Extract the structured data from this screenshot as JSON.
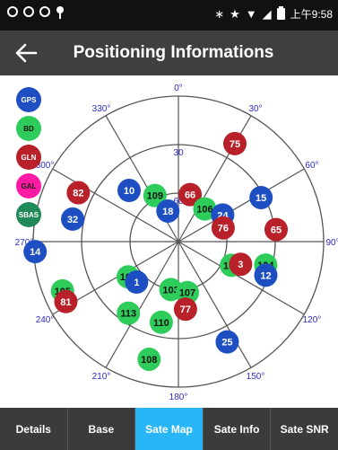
{
  "status_bar": {
    "time": "上午9:58"
  },
  "header": {
    "title": "Positioning Informations"
  },
  "legend": [
    {
      "label": "GPS",
      "color": "#1e4fc2"
    },
    {
      "label": "BD",
      "color": "#2ecc5a"
    },
    {
      "label": "GLN",
      "color": "#b8202a"
    },
    {
      "label": "GAL",
      "color": "#ff1aa3"
    },
    {
      "label": "SBAS",
      "color": "#1f8a57"
    }
  ],
  "skyplot": {
    "azimuth_labels": [
      {
        "az": 0,
        "label": "0°"
      },
      {
        "az": 30,
        "label": "30°"
      },
      {
        "az": 60,
        "label": "60°"
      },
      {
        "az": 90,
        "label": "90°"
      },
      {
        "az": 120,
        "label": "120°"
      },
      {
        "az": 150,
        "label": "150°"
      },
      {
        "az": 180,
        "label": "180°"
      },
      {
        "az": 210,
        "label": "210°"
      },
      {
        "az": 240,
        "label": "240°"
      },
      {
        "az": 270,
        "label": "270°"
      },
      {
        "az": 300,
        "label": "300°"
      },
      {
        "az": 330,
        "label": "330°"
      }
    ],
    "elevation_labels": [
      {
        "elevation": 30,
        "label": "30"
      },
      {
        "elevation": 60,
        "label": "60"
      }
    ],
    "satellites": [
      {
        "id": "75",
        "system": "GLN",
        "az": 30,
        "elevation": 20
      },
      {
        "id": "15",
        "system": "GPS",
        "az": 62,
        "elevation": 32
      },
      {
        "id": "10",
        "system": "GPS",
        "az": 316,
        "elevation": 46
      },
      {
        "id": "66",
        "system": "GLN",
        "az": 14,
        "elevation": 60
      },
      {
        "id": "109",
        "system": "BD",
        "az": 333,
        "elevation": 58
      },
      {
        "id": "106",
        "system": "BD",
        "az": 39,
        "elevation": 64
      },
      {
        "id": "24",
        "system": "GPS",
        "az": 59,
        "elevation": 58
      },
      {
        "id": "18",
        "system": "GPS",
        "az": 341,
        "elevation": 70
      },
      {
        "id": "76",
        "system": "GLN",
        "az": 73,
        "elevation": 61
      },
      {
        "id": "65",
        "system": "GLN",
        "az": 83,
        "elevation": 29
      },
      {
        "id": "82",
        "system": "GLN",
        "az": 296,
        "elevation": 21
      },
      {
        "id": "32",
        "system": "GPS",
        "az": 282,
        "elevation": 23
      },
      {
        "id": "14",
        "system": "GPS",
        "az": 266,
        "elevation": 1
      },
      {
        "id": "105",
        "system": "BD",
        "az": 247,
        "elevation": 12
      },
      {
        "id": "81",
        "system": "GLN",
        "az": 242,
        "elevation": 11
      },
      {
        "id": "102",
        "system": "BD",
        "az": 235,
        "elevation": 52
      },
      {
        "id": "1",
        "system": "GPS",
        "az": 226,
        "elevation": 54
      },
      {
        "id": "103",
        "system": "BD",
        "az": 189,
        "elevation": 60
      },
      {
        "id": "107",
        "system": "BD",
        "az": 170,
        "elevation": 58
      },
      {
        "id": "101",
        "system": "BD",
        "az": 114,
        "elevation": 54
      },
      {
        "id": "3",
        "system": "GLN",
        "az": 110,
        "elevation": 49
      },
      {
        "id": "104",
        "system": "BD",
        "az": 105,
        "elevation": 34
      },
      {
        "id": "12",
        "system": "GPS",
        "az": 111,
        "elevation": 32
      },
      {
        "id": "77",
        "system": "GLN",
        "az": 174,
        "elevation": 48
      },
      {
        "id": "113",
        "system": "BD",
        "az": 215,
        "elevation": 36
      },
      {
        "id": "110",
        "system": "BD",
        "az": 192,
        "elevation": 39
      },
      {
        "id": "25",
        "system": "GPS",
        "az": 154,
        "elevation": 21
      },
      {
        "id": "108",
        "system": "BD",
        "az": 194,
        "elevation": 15
      }
    ]
  },
  "tabs": [
    {
      "label": "Details",
      "active": false
    },
    {
      "label": "Base",
      "active": false
    },
    {
      "label": "Sate Map",
      "active": true
    },
    {
      "label": "Sate Info",
      "active": false
    },
    {
      "label": "Sate SNR",
      "active": false
    }
  ]
}
